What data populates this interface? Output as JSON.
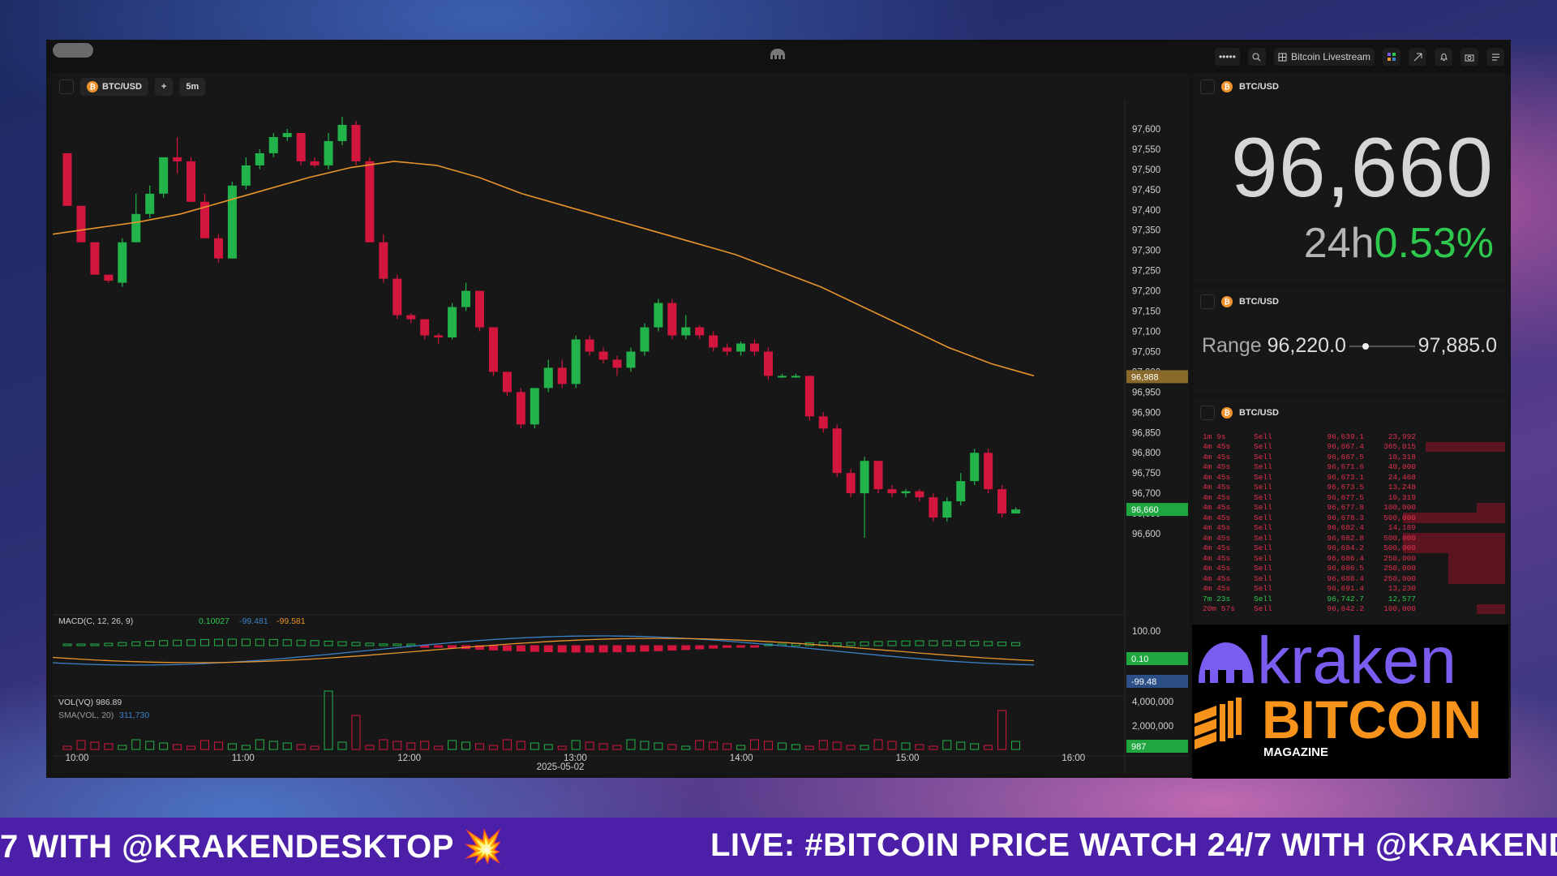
{
  "titlebar": {
    "dots": "•••••",
    "stream_label": "Bitcoin Livestream"
  },
  "chart": {
    "symbol": "BTC/USD",
    "add_label": "+",
    "interval": "5m",
    "date_label": "2025-05-02",
    "last_tag": "96,660",
    "sma_tag": "96,988",
    "macd_label": "MACD(C, 12, 26, 9)",
    "macd_values": [
      "0.10027",
      "-99.481",
      "-99.581"
    ],
    "macd_tags": [
      "100.00",
      "0.10",
      "-99.48"
    ],
    "vol_label": "VOL(VQ) 986.89",
    "sma_vol_label": "SMA(VOL, 20)",
    "sma_vol_value": "311,730",
    "vol_ticks": [
      "4,000,000",
      "2,000,000"
    ],
    "vol_tag": "987"
  },
  "chart_data": {
    "type": "candlestick",
    "title": "BTC/USD",
    "interval": "5m",
    "date": "2025-05-02",
    "x_ticks": [
      "10:00",
      "11:00",
      "12:00",
      "13:00",
      "14:00",
      "15:00",
      "16:00"
    ],
    "y_ticks": [
      "97,600",
      "97,550",
      "97,500",
      "97,450",
      "97,400",
      "97,350",
      "97,300",
      "97,250",
      "97,200",
      "97,150",
      "97,100",
      "97,050",
      "97,000",
      "96,950",
      "96,900",
      "96,850",
      "96,800",
      "96,750",
      "96,700",
      "96,650",
      "96,600"
    ],
    "ylim": [
      96560,
      97630
    ],
    "candles": [
      [
        97540,
        97410,
        97540,
        97410
      ],
      [
        97410,
        97320,
        97410,
        97320
      ],
      [
        97320,
        97240,
        97320,
        97240
      ],
      [
        97240,
        97225,
        97240,
        97220
      ],
      [
        97220,
        97320,
        97330,
        97210
      ],
      [
        97320,
        97390,
        97440,
        97320
      ],
      [
        97390,
        97440,
        97460,
        97380
      ],
      [
        97440,
        97530,
        97530,
        97430
      ],
      [
        97530,
        97520,
        97580,
        97490
      ],
      [
        97520,
        97420,
        97530,
        97420
      ],
      [
        97420,
        97330,
        97440,
        97330
      ],
      [
        97330,
        97280,
        97340,
        97270
      ],
      [
        97280,
        97460,
        97470,
        97280
      ],
      [
        97460,
        97510,
        97530,
        97450
      ],
      [
        97510,
        97540,
        97550,
        97500
      ],
      [
        97540,
        97580,
        97590,
        97530
      ],
      [
        97580,
        97590,
        97600,
        97570
      ],
      [
        97590,
        97520,
        97590,
        97510
      ],
      [
        97520,
        97510,
        97530,
        97505
      ],
      [
        97510,
        97570,
        97590,
        97500
      ],
      [
        97570,
        97610,
        97630,
        97560
      ],
      [
        97610,
        97520,
        97620,
        97510
      ],
      [
        97520,
        97320,
        97530,
        97320
      ],
      [
        97320,
        97230,
        97340,
        97220
      ],
      [
        97230,
        97140,
        97240,
        97130
      ],
      [
        97140,
        97130,
        97145,
        97120
      ],
      [
        97130,
        97090,
        97130,
        97080
      ],
      [
        97090,
        97085,
        97095,
        97070
      ],
      [
        97085,
        97160,
        97170,
        97080
      ],
      [
        97160,
        97200,
        97220,
        97150
      ],
      [
        97200,
        97110,
        97200,
        97100
      ],
      [
        97110,
        97000,
        97110,
        96990
      ],
      [
        97000,
        96950,
        97000,
        96940
      ],
      [
        96950,
        96870,
        96960,
        96860
      ],
      [
        96870,
        96960,
        96960,
        96860
      ],
      [
        96960,
        97010,
        97030,
        96950
      ],
      [
        97010,
        96970,
        97030,
        96960
      ],
      [
        96970,
        97080,
        97090,
        96960
      ],
      [
        97080,
        97050,
        97090,
        97040
      ],
      [
        97050,
        97030,
        97060,
        97020
      ],
      [
        97030,
        97010,
        97040,
        96990
      ],
      [
        97010,
        97050,
        97060,
        97000
      ],
      [
        97050,
        97110,
        97120,
        97040
      ],
      [
        97110,
        97170,
        97180,
        97100
      ],
      [
        97170,
        97090,
        97180,
        97080
      ],
      [
        97090,
        97110,
        97140,
        97080
      ],
      [
        97110,
        97090,
        97115,
        97080
      ],
      [
        97090,
        97060,
        97100,
        97050
      ],
      [
        97060,
        97050,
        97070,
        97040
      ],
      [
        97050,
        97070,
        97075,
        97040
      ],
      [
        97070,
        97050,
        97080,
        97040
      ],
      [
        97050,
        96990,
        97060,
        96980
      ],
      [
        96990,
        96990,
        96995,
        96985
      ],
      [
        96990,
        96990,
        96995,
        96985
      ],
      [
        96990,
        96890,
        96990,
        96880
      ],
      [
        96890,
        96860,
        96900,
        96850
      ],
      [
        96860,
        96750,
        96870,
        96740
      ],
      [
        96750,
        96700,
        96760,
        96690
      ],
      [
        96700,
        96780,
        96790,
        96590
      ],
      [
        96780,
        96710,
        96780,
        96700
      ],
      [
        96710,
        96700,
        96720,
        96690
      ],
      [
        96700,
        96705,
        96710,
        96690
      ],
      [
        96705,
        96690,
        96710,
        96680
      ],
      [
        96690,
        96640,
        96700,
        96630
      ],
      [
        96640,
        96680,
        96690,
        96630
      ],
      [
        96680,
        96730,
        96750,
        96670
      ],
      [
        96730,
        96800,
        96810,
        96720
      ],
      [
        96800,
        96710,
        96810,
        96700
      ],
      [
        96710,
        96650,
        96720,
        96640
      ],
      [
        96650,
        96660,
        96665,
        96655
      ]
    ],
    "sma": [
      97340,
      97355,
      97370,
      97390,
      97420,
      97450,
      97480,
      97505,
      97520,
      97510,
      97480,
      97440,
      97410,
      97380,
      97350,
      97320,
      97290,
      97250,
      97210,
      97160,
      97110,
      97060,
      97020,
      96990
    ],
    "macd": {
      "labels": [
        "MACD(C, 12, 26, 9)"
      ],
      "values": [
        0.10027,
        -99.481,
        -99.581
      ]
    },
    "volume_sma": 311730,
    "last_volume": 986.89
  },
  "price_panel": {
    "symbol": "BTC/USD",
    "price": "96,660",
    "change_label": "24h",
    "change_value": "0.53%"
  },
  "range_panel": {
    "symbol": "BTC/USD",
    "label": "Range",
    "low": "96,220.0",
    "high": "97,885.0"
  },
  "trades_panel": {
    "symbol": "BTC/USD",
    "rows": [
      {
        "time": "1m 9s",
        "side": "Sell",
        "price": "96,639.1",
        "amount": "23,992"
      },
      {
        "time": "4m 45s",
        "side": "Sell",
        "price": "96,667.4",
        "amount": "365,015"
      },
      {
        "time": "4m 45s",
        "side": "Sell",
        "price": "96,667.5",
        "amount": "10,318"
      },
      {
        "time": "4m 45s",
        "side": "Sell",
        "price": "96,671.6",
        "amount": "40,000"
      },
      {
        "time": "4m 45s",
        "side": "Sell",
        "price": "96,673.1",
        "amount": "24,468"
      },
      {
        "time": "4m 45s",
        "side": "Sell",
        "price": "96,673.5",
        "amount": "13,248"
      },
      {
        "time": "4m 45s",
        "side": "Sell",
        "price": "96,677.5",
        "amount": "10,319"
      },
      {
        "time": "4m 45s",
        "side": "Sell",
        "price": "96,677.8",
        "amount": "100,000"
      },
      {
        "time": "4m 45s",
        "side": "Sell",
        "price": "96,678.3",
        "amount": "500,000"
      },
      {
        "time": "4m 45s",
        "side": "Sell",
        "price": "96,682.4",
        "amount": "14,189"
      },
      {
        "time": "4m 45s",
        "side": "Sell",
        "price": "96,682.8",
        "amount": "500,000"
      },
      {
        "time": "4m 45s",
        "side": "Sell",
        "price": "96,684.2",
        "amount": "500,000"
      },
      {
        "time": "4m 45s",
        "side": "Sell",
        "price": "96,686.4",
        "amount": "250,000"
      },
      {
        "time": "4m 45s",
        "side": "Sell",
        "price": "96,686.5",
        "amount": "250,000"
      },
      {
        "time": "4m 45s",
        "side": "Sell",
        "price": "96,688.4",
        "amount": "250,000"
      },
      {
        "time": "4m 45s",
        "side": "Sell",
        "price": "96,691.4",
        "amount": "13,230"
      },
      {
        "time": "7m 23s",
        "side": "Sell",
        "price": "96,742.7",
        "amount": "12,577",
        "green": true
      },
      {
        "time": "20m 57s",
        "side": "Sell",
        "price": "96,642.2",
        "amount": "100,000"
      }
    ]
  },
  "branding": {
    "kraken": "kraken",
    "bitcoin": "BITCOIN",
    "magazine": "MAGAZINE"
  },
  "ticker": {
    "left_text": "7 WITH @KRAKENDESKTOP 💥",
    "right_text": "LIVE: #BITCOIN PRICE WATCH 24/7 WITH @KRAKENDE"
  },
  "colors": {
    "up": "#22b34b",
    "down": "#d3163e",
    "sma": "#e8942c",
    "macd_line": "#3b82c9",
    "accent": "#4b1fa8"
  }
}
